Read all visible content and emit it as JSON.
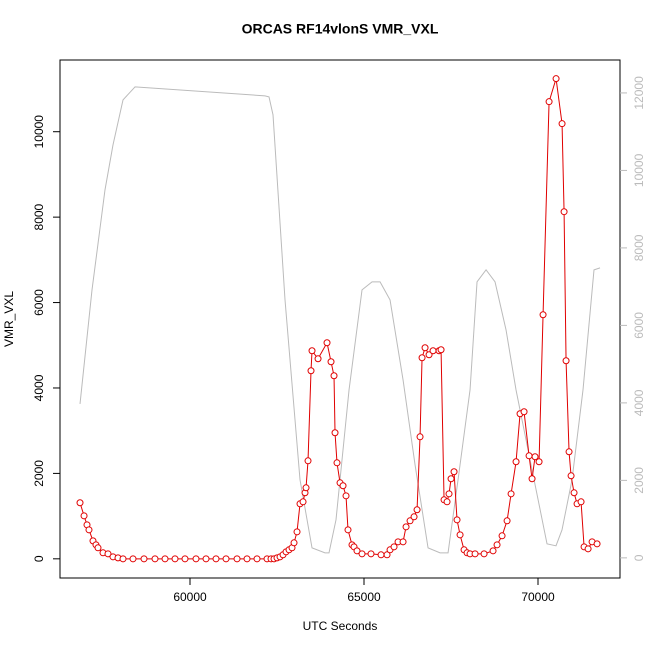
{
  "chart_data": {
    "type": "line",
    "title": "ORCAS RF14vlonS VMR_VXL",
    "x_label": "UTC Seconds",
    "y_label": "VMR_VXL",
    "xlim": [
      56264,
      72356
    ],
    "ylim": [
      -449,
      11679
    ],
    "y2lim": [
      -520,
      12850
    ],
    "xticks": [
      60000,
      65000,
      70000
    ],
    "yticks": [
      0,
      2000,
      4000,
      6000,
      8000,
      10000
    ],
    "y2ticks": [
      0,
      2000,
      4000,
      6000,
      8000,
      10000,
      12000
    ],
    "series": [
      {
        "color": "#e00000",
        "markers": true,
        "x": [
          56839,
          56955,
          57040,
          57097,
          57212,
          57298,
          57356,
          57500,
          57643,
          57787,
          57931,
          58075,
          58362,
          58678,
          58994,
          59282,
          59569,
          59856,
          60172,
          60460,
          60747,
          61035,
          61351,
          61638,
          61925,
          62213,
          62328,
          62414,
          62500,
          62587,
          62673,
          62759,
          62845,
          62931,
          62989,
          63075,
          63161,
          63248,
          63305,
          63334,
          63391,
          63477,
          63506,
          63679,
          63937,
          64052,
          64138,
          64167,
          64224,
          64311,
          64397,
          64483,
          64540,
          64655,
          64713,
          64799,
          64943,
          65201,
          65489,
          65662,
          65748,
          65863,
          65978,
          66122,
          66208,
          66323,
          66438,
          66524,
          66610,
          66668,
          66754,
          66869,
          66984,
          67156,
          67214,
          67300,
          67386,
          67443,
          67501,
          67587,
          67673,
          67760,
          67875,
          67961,
          68047,
          68191,
          68450,
          68708,
          68823,
          68967,
          69111,
          69226,
          69369,
          69484,
          69599,
          69743,
          69829,
          69915,
          70030,
          70145,
          70318,
          70519,
          70691,
          70749,
          70806,
          70892,
          70950,
          71036,
          71122,
          71237,
          71324,
          71439,
          71554,
          71697
        ],
        "values": [
          1312,
          1007,
          796,
          679,
          421,
          328,
          258,
          141,
          117,
          47,
          23,
          0,
          0,
          0,
          0,
          0,
          0,
          0,
          0,
          0,
          0,
          0,
          0,
          0,
          0,
          0,
          0,
          0,
          23,
          47,
          94,
          164,
          211,
          258,
          375,
          632,
          1288,
          1335,
          1546,
          1663,
          2295,
          4403,
          4871,
          4684,
          5059,
          4614,
          4286,
          2951,
          2248,
          1780,
          1710,
          1475,
          679,
          328,
          281,
          187,
          117,
          117,
          94,
          94,
          211,
          281,
          398,
          398,
          749,
          890,
          984,
          1148,
          2857,
          4707,
          4942,
          4778,
          4871,
          4871,
          4895,
          1382,
          1335,
          1522,
          1874,
          2038,
          913,
          562,
          211,
          141,
          117,
          117,
          117,
          187,
          328,
          539,
          890,
          1522,
          2272,
          3396,
          3443,
          2412,
          1874,
          2389,
          2272,
          5714,
          10703,
          11242,
          10188,
          8127,
          4637,
          2506,
          1944,
          1546,
          1288,
          1335,
          281,
          234,
          398,
          351
        ]
      },
      {
        "color": "#bbbbbb",
        "axis": "y2",
        "markers": false,
        "x": [
          56839,
          57184,
          57557,
          57787,
          58075,
          58420,
          62155,
          62270,
          62385,
          62730,
          63161,
          63506,
          63879,
          63994,
          64195,
          64570,
          64943,
          65231,
          65461,
          65748,
          66122,
          66467,
          66840,
          67185,
          67415,
          67702,
          68047,
          68248,
          68507,
          68765,
          69081,
          69368,
          69771,
          70259,
          70517,
          70690,
          70977,
          71293,
          71609,
          71782
        ],
        "values": [
          3974,
          6917,
          9498,
          10659,
          11821,
          12156,
          11924,
          11898,
          11434,
          6659,
          2013,
          258,
          129,
          129,
          981,
          4336,
          6917,
          7124,
          7124,
          6659,
          4594,
          2400,
          258,
          129,
          129,
          2013,
          4336,
          7124,
          7433,
          7124,
          5885,
          4336,
          2530,
          361,
          310,
          723,
          2013,
          4336,
          7433,
          7485
        ]
      }
    ]
  }
}
